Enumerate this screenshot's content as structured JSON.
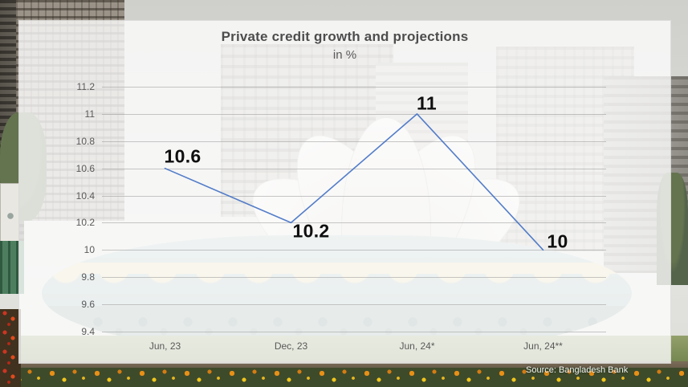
{
  "chart_data": {
    "type": "line",
    "title": "Private credit growth and projections",
    "subtitle": "in %",
    "categories": [
      "Jun, 23",
      "Dec, 23",
      "Jun, 24*",
      "Jun, 24**"
    ],
    "values": [
      10.6,
      10.2,
      11,
      10
    ],
    "data_labels": [
      "10.6",
      "10.2",
      "11",
      "10"
    ],
    "y_ticks": [
      "11.2",
      "11",
      "10.8",
      "10.6",
      "10.4",
      "10.2",
      "10",
      "9.8",
      "9.6",
      "9.4"
    ],
    "ylim": [
      9.4,
      11.2
    ],
    "grid": true,
    "legend": "none",
    "line_color": "#4472c4",
    "data_label_color": "#0f0f0f",
    "axis_label_color": "#595959",
    "source": "Source: Bangladesh Bank"
  }
}
